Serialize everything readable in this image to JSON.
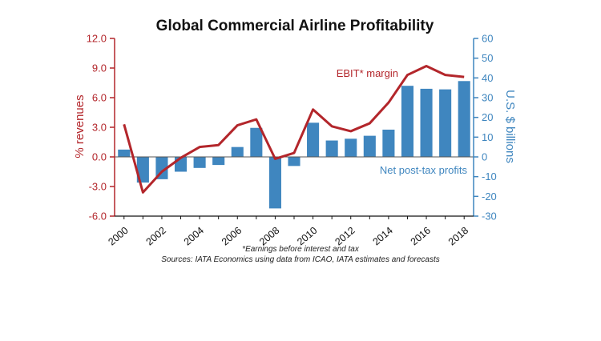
{
  "chart_data": {
    "type": "bar+line",
    "title": "Global Commercial Airline Profitability",
    "x": [
      2000,
      2001,
      2002,
      2003,
      2004,
      2005,
      2006,
      2007,
      2008,
      2009,
      2010,
      2011,
      2012,
      2013,
      2014,
      2015,
      2016,
      2017,
      2018
    ],
    "x_tick_labels": [
      "2000",
      "2002",
      "2004",
      "2006",
      "2008",
      "2010",
      "2012",
      "2014",
      "2016",
      "2018"
    ],
    "left_axis": {
      "label": "% revenues",
      "ylim": [
        -6.0,
        12.0
      ],
      "ticks": [
        "12.0",
        "9.0",
        "6.0",
        "3.0",
        "0.0",
        "-3.0",
        "-6.0"
      ],
      "color": "#b3262b"
    },
    "right_axis": {
      "label": "U.S. $ billions",
      "ylim": [
        -30,
        60
      ],
      "ticks": [
        "60",
        "50",
        "40",
        "30",
        "20",
        "10",
        "0",
        "-10",
        "-20",
        "-30"
      ],
      "color": "#3f86bf"
    },
    "series": [
      {
        "name": "Net post-tax profits",
        "type": "bar",
        "axis": "right",
        "color": "#3f86bf",
        "values": [
          3.7,
          -13.0,
          -11.3,
          -7.5,
          -5.6,
          -4.1,
          5.0,
          14.7,
          -26.1,
          -4.6,
          17.3,
          8.3,
          9.2,
          10.7,
          13.8,
          36.0,
          34.5,
          34.2,
          38.4
        ]
      },
      {
        "name": "EBIT* margin",
        "type": "line",
        "axis": "left",
        "color": "#b3262b",
        "values": [
          3.3,
          -3.6,
          -1.5,
          -0.1,
          1.0,
          1.2,
          3.2,
          3.8,
          -0.2,
          0.4,
          4.8,
          3.1,
          2.6,
          3.4,
          5.5,
          8.3,
          9.2,
          8.3,
          8.1
        ]
      }
    ],
    "annotations": {
      "line_label": "EBIT* margin",
      "bar_label": "Net post-tax profits"
    },
    "footnote": "*Earnings before interest and tax",
    "source": "Sources: IATA Economics using data from ICAO, IATA estimates and forecasts"
  }
}
